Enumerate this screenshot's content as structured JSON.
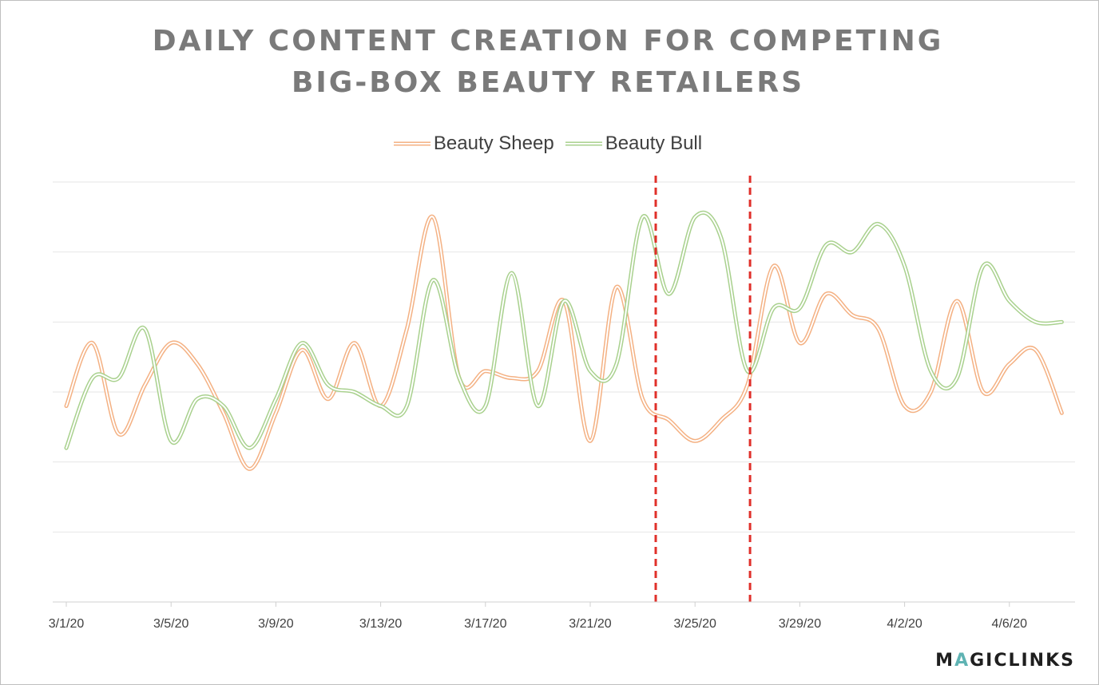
{
  "chart_data": {
    "type": "line",
    "title_line1": "DAILY CONTENT CREATION FOR COMPETING",
    "title_line2": "BIG-BOX BEAUTY RETAILERS",
    "xlabel": "",
    "ylabel": "",
    "tick_labels": [
      "3/1/20",
      "3/5/20",
      "3/9/20",
      "3/13/20",
      "3/17/20",
      "3/21/20",
      "3/25/20",
      "3/29/20",
      "4/2/20",
      "4/6/20"
    ],
    "x": [
      "3/1",
      "3/2",
      "3/3",
      "3/4",
      "3/5",
      "3/6",
      "3/7",
      "3/8",
      "3/9",
      "3/10",
      "3/11",
      "3/12",
      "3/13",
      "3/14",
      "3/15",
      "3/16",
      "3/17",
      "3/18",
      "3/19",
      "3/20",
      "3/21",
      "3/22",
      "3/23",
      "3/24",
      "3/25",
      "3/26",
      "3/27",
      "3/28",
      "3/29",
      "3/30",
      "3/31",
      "4/1",
      "4/2",
      "4/3",
      "4/4",
      "4/5",
      "4/6",
      "4/7",
      "4/8"
    ],
    "ylim": [
      0,
      6
    ],
    "gridlines": 6,
    "legend_position": "top-center",
    "series": [
      {
        "name": "Beauty Sheep",
        "color": "#f4b183",
        "values": [
          2.8,
          3.7,
          2.4,
          3.1,
          3.7,
          3.4,
          2.7,
          1.9,
          2.7,
          3.6,
          2.9,
          3.7,
          2.8,
          3.9,
          5.5,
          3.2,
          3.3,
          3.2,
          3.3,
          4.3,
          2.3,
          4.5,
          2.9,
          2.6,
          2.3,
          2.6,
          3.1,
          4.8,
          3.7,
          4.4,
          4.1,
          3.9,
          2.8,
          3.0,
          4.3,
          3.0,
          3.4,
          3.6,
          2.7
        ]
      },
      {
        "name": "Beauty Bull",
        "color": "#a9d18e",
        "values": [
          2.2,
          3.2,
          3.2,
          3.9,
          2.3,
          2.9,
          2.8,
          2.2,
          2.9,
          3.7,
          3.1,
          3.0,
          2.8,
          2.8,
          4.6,
          3.2,
          2.8,
          4.7,
          2.8,
          4.3,
          3.3,
          3.4,
          5.5,
          4.4,
          5.5,
          5.2,
          3.3,
          4.2,
          4.2,
          5.1,
          5.0,
          5.4,
          4.8,
          3.3,
          3.2,
          4.8,
          4.3,
          4.0,
          4.0
        ]
      }
    ],
    "annotations": [
      {
        "type": "vline",
        "x": 22.5,
        "color": "#e0302a",
        "style": "dashed"
      },
      {
        "type": "vline",
        "x": 26.1,
        "color": "#e0302a",
        "style": "dashed"
      }
    ]
  },
  "logo": {
    "part1": "M",
    "accent": "A",
    "part2": "GICLINKS"
  }
}
